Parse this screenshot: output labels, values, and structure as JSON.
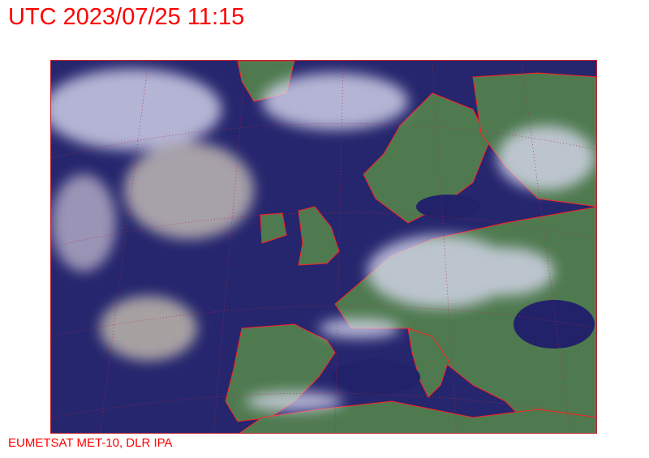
{
  "header": {
    "title": "UTC 2023/07/25 11:15"
  },
  "map": {
    "kind": "satellite-composite",
    "region": "Europe",
    "colors": {
      "ocean": "#26266e",
      "land": "#4c7a52",
      "cloud": "#dcdcf0",
      "coastline": "#ff2020"
    }
  },
  "footer": {
    "credit": "EUMETSAT MET-10, DLR IPA"
  }
}
